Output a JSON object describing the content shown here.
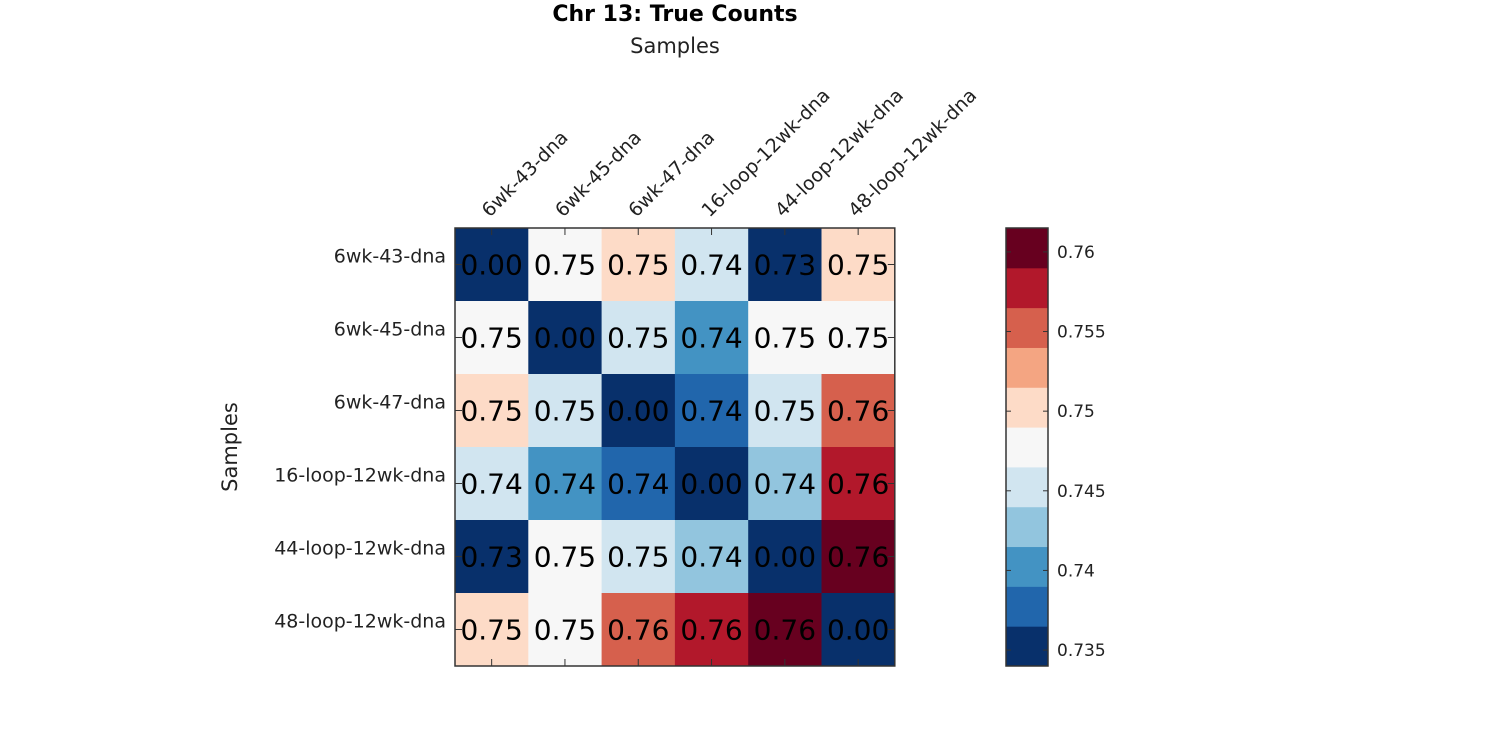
{
  "chart_data": {
    "type": "heatmap",
    "title": "Chr 13: True Counts",
    "xlabel": "Samples",
    "ylabel": "Samples",
    "x_categories": [
      "6wk-43-dna",
      "6wk-45-dna",
      "6wk-47-dna",
      "16-loop-12wk-dna",
      "44-loop-12wk-dna",
      "48-loop-12wk-dna"
    ],
    "y_categories": [
      "6wk-43-dna",
      "6wk-45-dna",
      "6wk-47-dna",
      "16-loop-12wk-dna",
      "44-loop-12wk-dna",
      "48-loop-12wk-dna"
    ],
    "values": [
      [
        0.0,
        0.747,
        0.751,
        0.744,
        0.733,
        0.751
      ],
      [
        0.747,
        0.0,
        0.745,
        0.74,
        0.747,
        0.747
      ],
      [
        0.751,
        0.745,
        0.0,
        0.738,
        0.745,
        0.756
      ],
      [
        0.744,
        0.74,
        0.738,
        0.0,
        0.743,
        0.758
      ],
      [
        0.733,
        0.747,
        0.745,
        0.743,
        0.0,
        0.761
      ],
      [
        0.751,
        0.747,
        0.756,
        0.758,
        0.761,
        0.0
      ]
    ],
    "labels": [
      [
        "0.00",
        "0.75",
        "0.75",
        "0.74",
        "0.73",
        "0.75"
      ],
      [
        "0.75",
        "0.00",
        "0.75",
        "0.74",
        "0.75",
        "0.75"
      ],
      [
        "0.75",
        "0.75",
        "0.00",
        "0.74",
        "0.75",
        "0.76"
      ],
      [
        "0.74",
        "0.74",
        "0.74",
        "0.00",
        "0.74",
        "0.76"
      ],
      [
        "0.73",
        "0.75",
        "0.75",
        "0.74",
        "0.00",
        "0.76"
      ],
      [
        "0.75",
        "0.75",
        "0.76",
        "0.76",
        "0.76",
        "0.00"
      ]
    ],
    "colorbar": {
      "min": 0.734,
      "max": 0.7615,
      "ticks": [
        0.735,
        0.74,
        0.745,
        0.75,
        0.755,
        0.76
      ],
      "tick_labels": [
        "0.735",
        "0.74",
        "0.745",
        "0.75",
        "0.755",
        "0.76"
      ],
      "colors": [
        "#08306b",
        "#2166ac",
        "#4393c3",
        "#92c5de",
        "#d1e5f0",
        "#f7f7f7",
        "#fddbc7",
        "#f4a582",
        "#d6604d",
        "#b2182b",
        "#67001f"
      ]
    },
    "grid": false
  }
}
